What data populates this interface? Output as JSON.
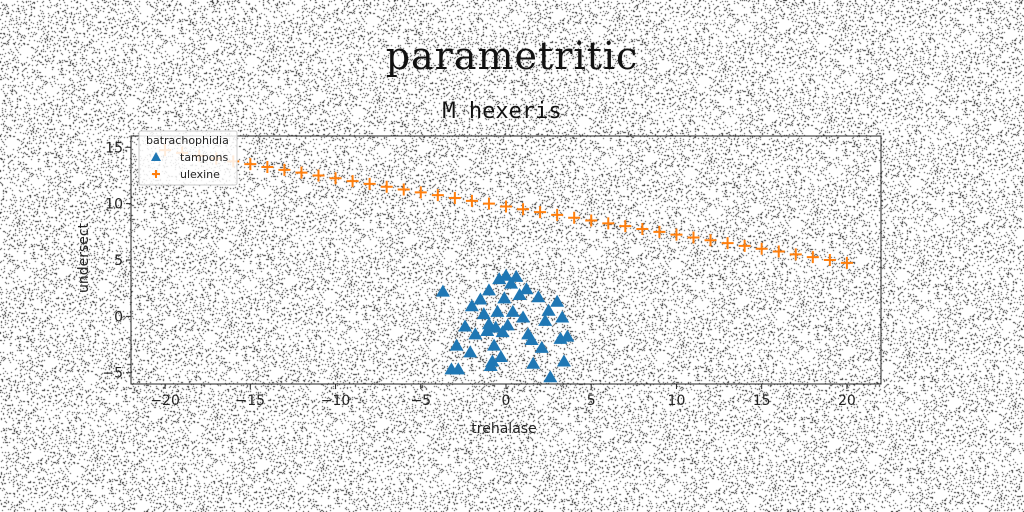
{
  "figure": {
    "suptitle": "parametritic"
  },
  "chart_data": {
    "type": "scatter",
    "title": "M hexeris",
    "xlabel": "trehalase",
    "ylabel": "undersect",
    "xlim": [
      -22,
      22
    ],
    "ylim": [
      -6,
      16
    ],
    "xticks": [
      -20,
      -15,
      -10,
      -5,
      0,
      5,
      10,
      15,
      20
    ],
    "yticks": [
      -5,
      0,
      5,
      10,
      15
    ],
    "grid": false,
    "legend": {
      "title": "batrachophidia",
      "location": "top-left"
    },
    "series": [
      {
        "name": "tampons",
        "marker": "triangle-up",
        "color": "#1f77b4",
        "points": [
          [
            -3.7,
            2.2
          ],
          [
            -3.2,
            -4.7
          ],
          [
            -2.8,
            -4.7
          ],
          [
            -2.9,
            -2.6
          ],
          [
            -2.4,
            -0.9
          ],
          [
            -2.1,
            -3.2
          ],
          [
            -2.0,
            0.9
          ],
          [
            -1.8,
            -1.6
          ],
          [
            -1.5,
            1.5
          ],
          [
            -1.3,
            0.2
          ],
          [
            -1.1,
            -1.3
          ],
          [
            -1.0,
            -0.7
          ],
          [
            -1.0,
            2.3
          ],
          [
            -0.9,
            -4.4
          ],
          [
            -0.8,
            -4.0
          ],
          [
            -0.7,
            -2.6
          ],
          [
            -0.6,
            -1.0
          ],
          [
            -0.5,
            0.4
          ],
          [
            -0.4,
            3.3
          ],
          [
            -0.3,
            -3.6
          ],
          [
            -0.2,
            -1.4
          ],
          [
            -0.1,
            1.6
          ],
          [
            0.0,
            3.6
          ],
          [
            0.1,
            -0.8
          ],
          [
            0.3,
            2.9
          ],
          [
            0.4,
            0.4
          ],
          [
            0.6,
            3.5
          ],
          [
            0.8,
            1.9
          ],
          [
            1.0,
            -0.1
          ],
          [
            1.2,
            2.4
          ],
          [
            1.3,
            -1.6
          ],
          [
            1.5,
            -2.1
          ],
          [
            1.6,
            -4.2
          ],
          [
            1.9,
            1.7
          ],
          [
            2.1,
            -2.8
          ],
          [
            2.3,
            -0.4
          ],
          [
            2.5,
            0.5
          ],
          [
            2.6,
            -5.4
          ],
          [
            3.0,
            1.3
          ],
          [
            3.2,
            -2.0
          ],
          [
            3.3,
            -0.1
          ],
          [
            3.4,
            -4.0
          ],
          [
            3.6,
            -1.8
          ]
        ]
      },
      {
        "name": "ulexine",
        "marker": "plus",
        "color": "#ff7f0e",
        "points": [
          [
            -20.0,
            14.75
          ],
          [
            -19.0,
            14.5
          ],
          [
            -18.0,
            14.25
          ],
          [
            -17.0,
            14.0
          ],
          [
            -16.0,
            13.75
          ],
          [
            -15.0,
            13.5
          ],
          [
            -14.0,
            13.25
          ],
          [
            -13.0,
            13.0
          ],
          [
            -12.0,
            12.75
          ],
          [
            -11.0,
            12.5
          ],
          [
            -10.0,
            12.25
          ],
          [
            -9.0,
            12.0
          ],
          [
            -8.0,
            11.75
          ],
          [
            -7.0,
            11.5
          ],
          [
            -6.0,
            11.25
          ],
          [
            -5.0,
            11.0
          ],
          [
            -4.0,
            10.75
          ],
          [
            -3.0,
            10.5
          ],
          [
            -2.0,
            10.25
          ],
          [
            -1.0,
            10.0
          ],
          [
            0.0,
            9.75
          ],
          [
            1.0,
            9.5
          ],
          [
            2.0,
            9.25
          ],
          [
            3.0,
            9.0
          ],
          [
            4.0,
            8.75
          ],
          [
            5.0,
            8.5
          ],
          [
            6.0,
            8.25
          ],
          [
            7.0,
            8.0
          ],
          [
            8.0,
            7.75
          ],
          [
            9.0,
            7.5
          ],
          [
            10.0,
            7.25
          ],
          [
            11.0,
            7.0
          ],
          [
            12.0,
            6.75
          ],
          [
            13.0,
            6.5
          ],
          [
            14.0,
            6.25
          ],
          [
            15.0,
            6.0
          ],
          [
            16.0,
            5.75
          ],
          [
            17.0,
            5.5
          ],
          [
            18.0,
            5.25
          ],
          [
            19.0,
            5.0
          ],
          [
            20.0,
            4.75
          ]
        ]
      }
    ]
  }
}
